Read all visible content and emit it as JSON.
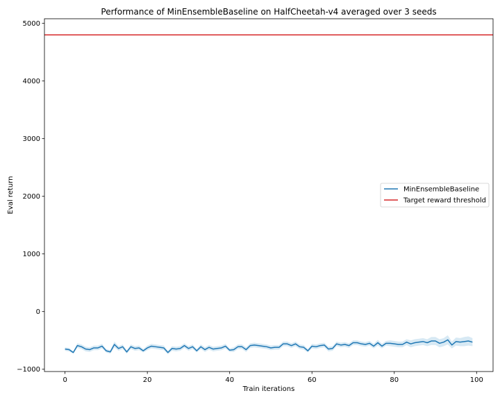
{
  "chart_data": {
    "type": "line",
    "title": "Performance of MinEnsembleBaseline on HalfCheetah-v4 averaged over 3 seeds",
    "xlabel": "Train iterations",
    "ylabel": "Eval return",
    "xlim": [
      -5,
      104
    ],
    "ylim": [
      -1040,
      5080
    ],
    "xticks": [
      0,
      20,
      40,
      60,
      80,
      100
    ],
    "yticks": [
      -1000,
      0,
      1000,
      2000,
      3000,
      4000,
      5000
    ],
    "grid": false,
    "legend_position": "center-right",
    "series": [
      {
        "name": "MinEnsembleBaseline",
        "color": "#1f77b4",
        "band_color": "#c6dff0",
        "x": [
          0,
          1,
          2,
          3,
          4,
          5,
          6,
          7,
          8,
          9,
          10,
          11,
          12,
          13,
          14,
          15,
          16,
          17,
          18,
          19,
          20,
          21,
          22,
          23,
          24,
          25,
          26,
          27,
          28,
          29,
          30,
          31,
          32,
          33,
          34,
          35,
          36,
          37,
          38,
          39,
          40,
          41,
          42,
          43,
          44,
          45,
          46,
          47,
          48,
          49,
          50,
          51,
          52,
          53,
          54,
          55,
          56,
          57,
          58,
          59,
          60,
          61,
          62,
          63,
          64,
          65,
          66,
          67,
          68,
          69,
          70,
          71,
          72,
          73,
          74,
          75,
          76,
          77,
          78,
          79,
          80,
          81,
          82,
          83,
          84,
          85,
          86,
          87,
          88,
          89,
          90,
          91,
          92,
          93,
          94,
          95,
          96,
          97,
          98,
          99
        ],
        "values": [
          -650,
          -660,
          -710,
          -590,
          -610,
          -650,
          -660,
          -630,
          -630,
          -600,
          -680,
          -700,
          -570,
          -640,
          -610,
          -700,
          -610,
          -640,
          -630,
          -680,
          -630,
          -600,
          -610,
          -620,
          -630,
          -710,
          -640,
          -650,
          -640,
          -590,
          -640,
          -610,
          -680,
          -610,
          -660,
          -620,
          -650,
          -640,
          -630,
          -600,
          -670,
          -660,
          -610,
          -610,
          -660,
          -590,
          -580,
          -590,
          -600,
          -610,
          -630,
          -620,
          -620,
          -560,
          -560,
          -590,
          -560,
          -610,
          -620,
          -680,
          -600,
          -610,
          -590,
          -580,
          -650,
          -640,
          -560,
          -580,
          -570,
          -590,
          -540,
          -540,
          -560,
          -570,
          -550,
          -600,
          -540,
          -600,
          -550,
          -550,
          -560,
          -570,
          -570,
          -530,
          -560,
          -540,
          -530,
          -520,
          -540,
          -510,
          -510,
          -550,
          -530,
          -490,
          -580,
          -520,
          -530,
          -520,
          -510,
          -530
        ],
        "lower": [
          -680,
          -690,
          -730,
          -630,
          -650,
          -690,
          -700,
          -670,
          -670,
          -640,
          -710,
          -730,
          -620,
          -680,
          -650,
          -730,
          -650,
          -680,
          -670,
          -710,
          -670,
          -640,
          -650,
          -660,
          -670,
          -740,
          -680,
          -690,
          -680,
          -630,
          -680,
          -650,
          -710,
          -650,
          -700,
          -660,
          -690,
          -680,
          -670,
          -640,
          -700,
          -700,
          -650,
          -650,
          -700,
          -630,
          -620,
          -630,
          -640,
          -650,
          -670,
          -660,
          -660,
          -600,
          -600,
          -630,
          -600,
          -650,
          -660,
          -710,
          -640,
          -650,
          -630,
          -620,
          -690,
          -680,
          -600,
          -620,
          -610,
          -630,
          -580,
          -580,
          -600,
          -610,
          -590,
          -640,
          -590,
          -640,
          -590,
          -600,
          -610,
          -620,
          -620,
          -580,
          -620,
          -600,
          -590,
          -580,
          -600,
          -580,
          -580,
          -620,
          -600,
          -570,
          -640,
          -590,
          -600,
          -600,
          -590,
          -600
        ],
        "upper": [
          -620,
          -630,
          -690,
          -550,
          -570,
          -610,
          -620,
          -590,
          -590,
          -560,
          -650,
          -670,
          -520,
          -600,
          -570,
          -670,
          -570,
          -600,
          -590,
          -650,
          -590,
          -560,
          -570,
          -580,
          -590,
          -680,
          -600,
          -610,
          -600,
          -550,
          -600,
          -570,
          -650,
          -570,
          -620,
          -580,
          -610,
          -600,
          -590,
          -560,
          -640,
          -620,
          -570,
          -570,
          -620,
          -550,
          -540,
          -550,
          -560,
          -570,
          -590,
          -580,
          -580,
          -520,
          -520,
          -550,
          -520,
          -570,
          -580,
          -650,
          -560,
          -570,
          -550,
          -540,
          -610,
          -600,
          -520,
          -540,
          -530,
          -550,
          -500,
          -500,
          -520,
          -530,
          -510,
          -560,
          -490,
          -560,
          -510,
          -500,
          -510,
          -520,
          -520,
          -480,
          -500,
          -480,
          -470,
          -460,
          -480,
          -440,
          -440,
          -480,
          -460,
          -410,
          -520,
          -450,
          -460,
          -440,
          -430,
          -460
        ]
      },
      {
        "name": "Target reward threshold",
        "color": "#d62728",
        "type": "hline",
        "y": 4800
      }
    ]
  }
}
